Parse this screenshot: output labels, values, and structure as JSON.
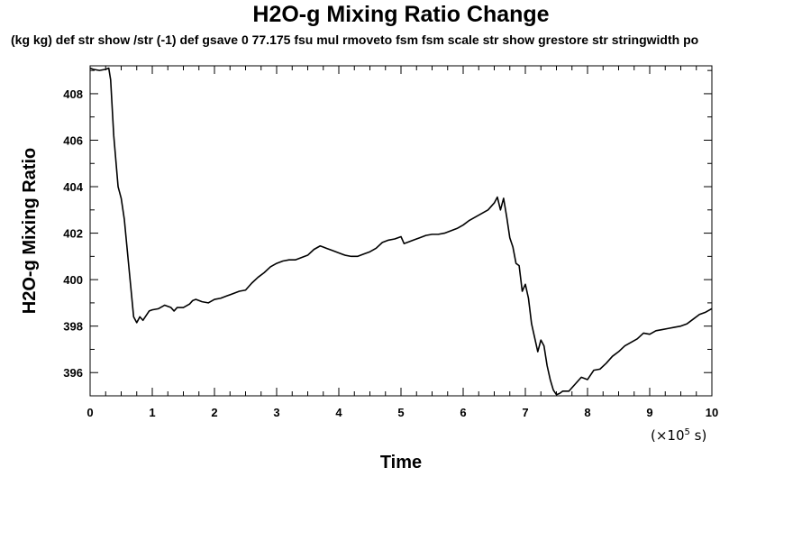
{
  "chart_data": {
    "type": "line",
    "title": "H2O-g Mixing Ratio Change",
    "subtitle": "(kg kg) def str show /str (-1) def gsave 0 77.175 fsu mul rmoveto fsm fsm scale str show grestore str stringwidth po",
    "xlabel": "Time",
    "ylabel": "H2O-g Mixing Ratio",
    "x_unit_prefix": "(×10",
    "x_unit_exponent": "5",
    "x_unit_suffix": " s)",
    "xlim": [
      0,
      10
    ],
    "ylim": [
      395,
      409.2
    ],
    "x_ticks": [
      0,
      1,
      2,
      3,
      4,
      5,
      6,
      7,
      8,
      9,
      10
    ],
    "y_ticks": [
      396,
      398,
      400,
      402,
      404,
      406,
      408
    ],
    "grid": false,
    "series": [
      {
        "x": [
          0,
          0.05,
          0.15,
          0.25,
          0.3,
          0.33,
          0.38,
          0.45,
          0.5,
          0.55,
          0.6,
          0.65,
          0.7,
          0.75,
          0.8,
          0.85,
          0.9,
          0.95,
          1.0,
          1.1,
          1.2,
          1.25,
          1.3,
          1.35,
          1.4,
          1.5,
          1.6,
          1.65,
          1.7,
          1.8,
          1.9,
          2.0,
          2.1,
          2.2,
          2.3,
          2.4,
          2.5,
          2.6,
          2.7,
          2.8,
          2.9,
          3.0,
          3.1,
          3.2,
          3.3,
          3.4,
          3.5,
          3.6,
          3.7,
          3.75,
          3.8,
          3.9,
          4.0,
          4.1,
          4.2,
          4.3,
          4.4,
          4.5,
          4.6,
          4.7,
          4.8,
          4.9,
          5.0,
          5.05,
          5.1,
          5.2,
          5.3,
          5.4,
          5.5,
          5.6,
          5.7,
          5.8,
          5.9,
          6.0,
          6.1,
          6.2,
          6.3,
          6.4,
          6.5,
          6.55,
          6.6,
          6.65,
          6.7,
          6.75,
          6.8,
          6.85,
          6.9,
          6.95,
          7.0,
          7.05,
          7.1,
          7.15,
          7.2,
          7.25,
          7.3,
          7.35,
          7.4,
          7.45,
          7.5,
          7.55,
          7.6,
          7.7,
          7.8,
          7.9,
          8.0,
          8.1,
          8.2,
          8.3,
          8.4,
          8.5,
          8.6,
          8.7,
          8.8,
          8.9,
          9.0,
          9.1,
          9.2,
          9.3,
          9.4,
          9.5,
          9.6,
          9.7,
          9.8,
          9.9,
          10.0
        ],
        "y": [
          409.1,
          409.05,
          409.0,
          409.05,
          409.1,
          408.6,
          406.2,
          404.0,
          403.5,
          402.6,
          401.2,
          399.8,
          398.4,
          398.15,
          398.4,
          398.25,
          398.45,
          398.65,
          398.7,
          398.75,
          398.9,
          398.85,
          398.8,
          398.65,
          398.8,
          398.8,
          398.95,
          399.1,
          399.15,
          399.05,
          399.0,
          399.15,
          399.2,
          399.3,
          399.4,
          399.5,
          399.55,
          399.85,
          400.1,
          400.3,
          400.55,
          400.7,
          400.8,
          400.85,
          400.85,
          400.95,
          401.05,
          401.3,
          401.45,
          401.4,
          401.35,
          401.25,
          401.15,
          401.05,
          401.0,
          401.0,
          401.1,
          401.2,
          401.35,
          401.6,
          401.7,
          401.75,
          401.85,
          401.55,
          401.6,
          401.7,
          401.8,
          401.9,
          401.95,
          401.95,
          402.0,
          402.1,
          402.2,
          402.35,
          402.55,
          402.7,
          402.85,
          403.0,
          403.3,
          403.55,
          403.0,
          403.5,
          402.7,
          401.8,
          401.4,
          400.7,
          400.6,
          399.5,
          399.8,
          399.2,
          398.1,
          397.5,
          396.9,
          397.4,
          397.15,
          396.3,
          395.7,
          395.25,
          395.05,
          395.1,
          395.2,
          395.2,
          395.5,
          395.8,
          395.7,
          396.1,
          396.15,
          396.4,
          396.7,
          396.9,
          397.15,
          397.3,
          397.45,
          397.7,
          397.65,
          397.8,
          397.85,
          397.9,
          397.95,
          398.0,
          398.1,
          398.3,
          398.5,
          398.6,
          398.75
        ]
      }
    ]
  }
}
